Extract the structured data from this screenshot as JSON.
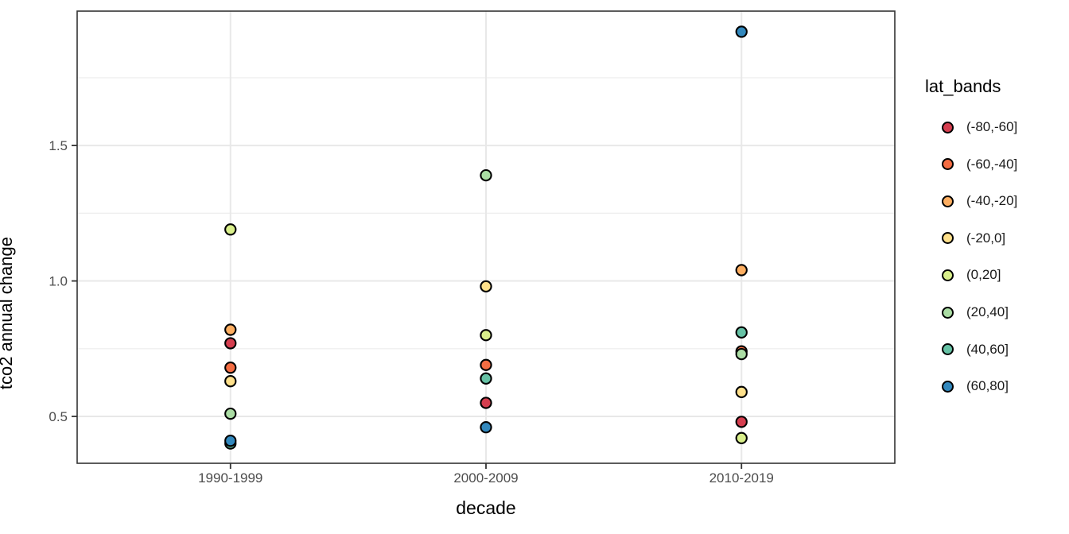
{
  "figure": {
    "background": "#FFFFFF",
    "panel_border_color": "#333333",
    "grid_major_color": "#E8E8E8",
    "grid_minor_color": "#EFEFEF",
    "tick_color": "#333333",
    "tick_label_color": "#4D4D4D",
    "axis_title_color": "#000000",
    "point_stroke_color": "#000000"
  },
  "chart_data": {
    "type": "scatter",
    "title": "",
    "xlabel": "decade",
    "ylabel": "tco2 annual change",
    "categories": [
      "1990-1999",
      "2000-2009",
      "2010-2019"
    ],
    "y_axis": {
      "ticks": [
        0.5,
        1.0,
        1.5
      ],
      "tick_labels": [
        "0.5",
        "1.0",
        "1.5"
      ],
      "minor_ticks": [
        0.75,
        1.25,
        1.75
      ],
      "range": [
        0.327,
        1.996
      ],
      "grid": true
    },
    "legend": {
      "title": "lat_bands",
      "position": "right"
    },
    "series": [
      {
        "name": "(-80,-60]",
        "color": "#D53E4F",
        "values": [
          0.77,
          0.55,
          0.48
        ]
      },
      {
        "name": "(-60,-40]",
        "color": "#F46D43",
        "values": [
          0.68,
          0.69,
          0.74
        ]
      },
      {
        "name": "(-40,-20]",
        "color": "#FDAE61",
        "values": [
          0.82,
          null,
          1.04
        ]
      },
      {
        "name": "(-20,0]",
        "color": "#FEE08B",
        "values": [
          0.63,
          0.98,
          0.59
        ]
      },
      {
        "name": "(0,20]",
        "color": "#D9EF8B",
        "values": [
          1.19,
          0.8,
          0.42
        ]
      },
      {
        "name": "(20,40]",
        "color": "#ABDDA4",
        "values": [
          0.51,
          1.39,
          0.73
        ]
      },
      {
        "name": "(40,60]",
        "color": "#66C2A5",
        "values": [
          0.4,
          0.64,
          0.81
        ]
      },
      {
        "name": "(60,80]",
        "color": "#3288BD",
        "values": [
          0.41,
          0.46,
          1.92
        ]
      }
    ]
  }
}
